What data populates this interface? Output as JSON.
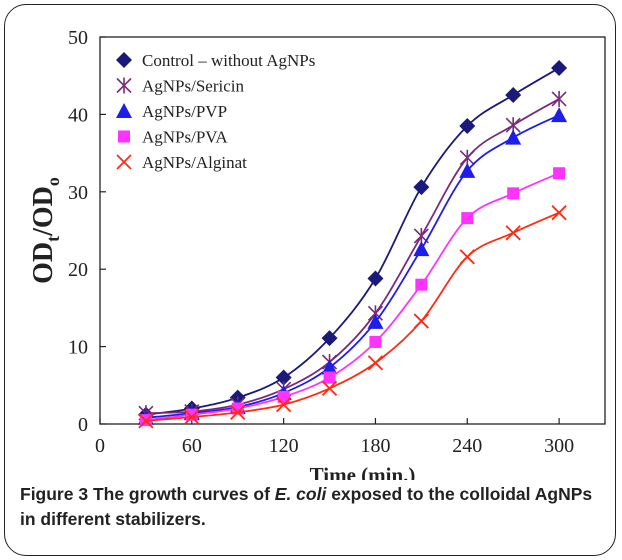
{
  "chart_data": {
    "type": "line",
    "title": "",
    "xlabel": "Time (min.)",
    "ylabel": {
      "base1": "OD",
      "sub1": "t",
      "mid": "/OD",
      "sub2": "o"
    },
    "xlim": [
      0,
      330
    ],
    "ylim": [
      0,
      50
    ],
    "xticks": [
      0,
      60,
      120,
      180,
      240,
      300
    ],
    "yticks": [
      0,
      10,
      20,
      30,
      40,
      50
    ],
    "x": [
      30,
      60,
      90,
      120,
      150,
      180,
      210,
      240,
      270,
      300
    ],
    "legend_position": "top-left",
    "grid": false,
    "series": [
      {
        "name": "Control – without AgNPs",
        "marker": "diamond",
        "color": "#1a1a7a",
        "values": [
          1.2,
          2.0,
          3.4,
          6.0,
          11.1,
          18.8,
          30.6,
          38.5,
          42.5,
          46.0
        ]
      },
      {
        "name": "AgNPs/Sericin",
        "marker": "asterisk",
        "color": "#7a2a7a",
        "values": [
          1.4,
          1.6,
          2.5,
          4.5,
          8.0,
          14.3,
          24.3,
          34.4,
          38.6,
          42.0
        ]
      },
      {
        "name": "AgNPs/PVP",
        "marker": "triangle",
        "color": "#1e1ee8",
        "values": [
          0.8,
          1.4,
          2.2,
          4.0,
          7.3,
          13.2,
          22.6,
          32.7,
          37.0,
          39.9
        ]
      },
      {
        "name": "AgNPs/PVA",
        "marker": "square",
        "color": "#ff33ff",
        "values": [
          0.5,
          1.2,
          2.0,
          3.5,
          6.0,
          10.6,
          18.0,
          26.6,
          29.8,
          32.4
        ]
      },
      {
        "name": "AgNPs/Alginat",
        "marker": "x",
        "color": "#ff2a10",
        "values": [
          0.4,
          0.9,
          1.5,
          2.5,
          4.6,
          7.9,
          13.3,
          21.6,
          24.7,
          27.3
        ]
      }
    ]
  },
  "caption": {
    "label": "Figure 3",
    "text_before": " The growth curves of ",
    "italic": "E. coli",
    "text_after": " exposed to the colloidal AgNPs in different stabilizers."
  }
}
